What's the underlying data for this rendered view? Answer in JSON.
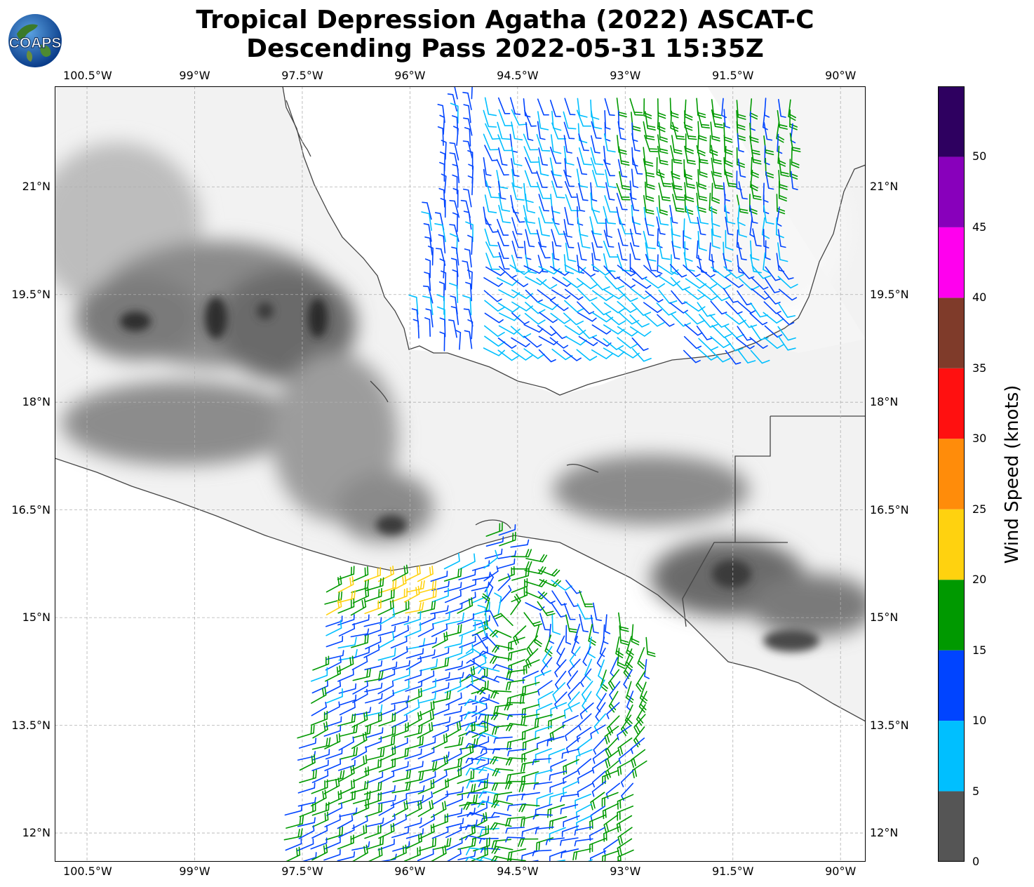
{
  "title": {
    "line1": "Tropical Depression Agatha (2022) ASCAT-C",
    "line2": "Descending Pass 2022-05-31 15:35Z"
  },
  "logo": {
    "text": "COAPS",
    "icon": "globe-logo-icon"
  },
  "map": {
    "lon_range": [
      -100.95,
      -89.65
    ],
    "lat_range": [
      11.6,
      22.4
    ],
    "lon_ticks": [
      "100.5°W",
      "99°W",
      "97.5°W",
      "96°W",
      "94.5°W",
      "93°W",
      "91.5°W",
      "90°W"
    ],
    "lat_ticks": [
      "21°N",
      "19.5°N",
      "18°N",
      "16.5°N",
      "15°N",
      "13.5°N",
      "12°N"
    ],
    "colors": {
      "land_light": "#f4f4f4",
      "land_dark": "#2e2e2e",
      "coast": "#444444",
      "grid": "#b0b0b0"
    }
  },
  "colorbar": {
    "label": "Wind Speed (knots)",
    "ticks": [
      "0",
      "5",
      "10",
      "15",
      "20",
      "25",
      "30",
      "35",
      "40",
      "45",
      "50"
    ],
    "bins": [
      {
        "min": 0,
        "max": 5,
        "color": "#555555"
      },
      {
        "min": 5,
        "max": 10,
        "color": "#00bfff"
      },
      {
        "min": 10,
        "max": 15,
        "color": "#0044ff"
      },
      {
        "min": 15,
        "max": 20,
        "color": "#009900"
      },
      {
        "min": 20,
        "max": 25,
        "color": "#ffd20f"
      },
      {
        "min": 25,
        "max": 30,
        "color": "#ff8c0a"
      },
      {
        "min": 30,
        "max": 35,
        "color": "#ff1010"
      },
      {
        "min": 35,
        "max": 40,
        "color": "#7f3b2a"
      },
      {
        "min": 40,
        "max": 45,
        "color": "#ff00ee"
      },
      {
        "min": 45,
        "max": 50,
        "color": "#8800bb"
      },
      {
        "min": 50,
        "max": 55,
        "color": "#2e0060"
      }
    ]
  }
}
